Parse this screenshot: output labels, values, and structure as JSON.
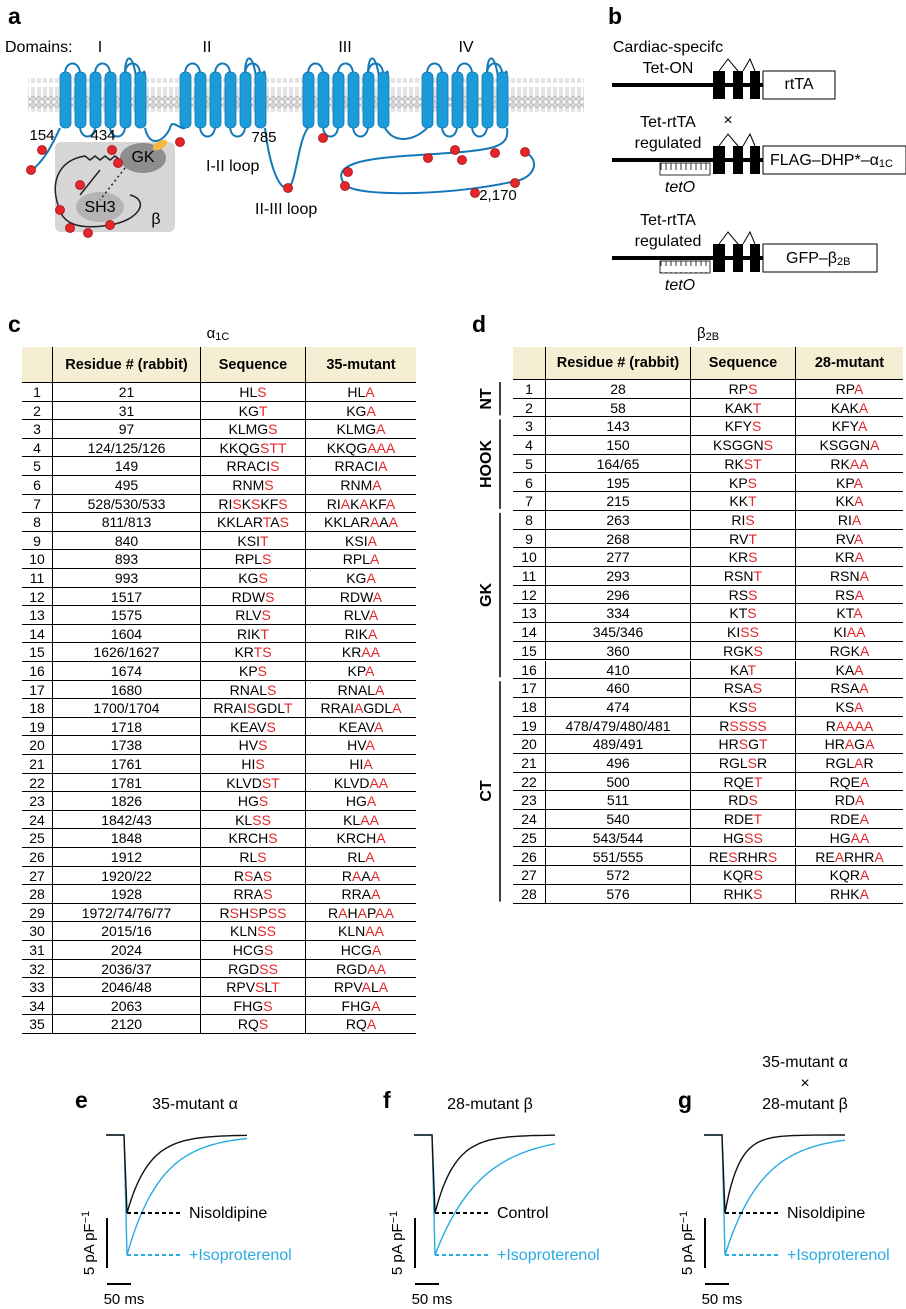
{
  "panel_a": {
    "letter": "a",
    "domains_label": "Domains:",
    "domains": [
      "I",
      "II",
      "III",
      "IV"
    ],
    "residue_labels": [
      "154",
      "434",
      "785",
      "2,170"
    ],
    "gk": "GK",
    "sh3": "SH3",
    "beta": "β",
    "loop_1_2": "I-II loop",
    "loop_2_3": "II-III loop"
  },
  "panel_b": {
    "letter": "b",
    "construct_1": {
      "line1": "Cardiac-specifc",
      "line2": "Tet-ON",
      "box": "rtTA"
    },
    "mark": "×",
    "construct_2": {
      "line1": "Tet-rtTA",
      "line2": "regulated",
      "box_base": "FLAG–DHP*–α",
      "box_sub": "1C",
      "operator": "tetO"
    },
    "construct_3": {
      "line1": "Tet-rtTA",
      "line2": "regulated",
      "box_base": "GFP–β",
      "box_sub": "2B",
      "operator": "tetO"
    }
  },
  "panel_c": {
    "letter": "c",
    "title_base": "α",
    "title_sub": "1C",
    "headers": [
      "Residue # (rabbit)",
      "Sequence",
      "35-mutant"
    ],
    "rows": [
      [
        1,
        "21",
        "HLS",
        "HLA"
      ],
      [
        2,
        "31",
        "KGT",
        "KGA"
      ],
      [
        3,
        "97",
        "KLMGS",
        "KLMGA"
      ],
      [
        4,
        "124/125/126",
        "KKQGSTT",
        "KKQGAAA"
      ],
      [
        5,
        "149",
        "RRACIS",
        "RRACIA"
      ],
      [
        6,
        "495",
        "RNMS",
        "RNMA"
      ],
      [
        7,
        "528/530/533",
        "RISKSKFS",
        "RIAKAKFA"
      ],
      [
        8,
        "811/813",
        "KKLARTAS",
        "KKLARAAA"
      ],
      [
        9,
        "840",
        "KSIT",
        "KSIA"
      ],
      [
        10,
        "893",
        "RPLS",
        "RPLA"
      ],
      [
        11,
        "993",
        "KGS",
        "KGA"
      ],
      [
        12,
        "1517",
        "RDWS",
        "RDWA"
      ],
      [
        13,
        "1575",
        "RLVS",
        "RLVA"
      ],
      [
        14,
        "1604",
        "RIKT",
        "RIKA"
      ],
      [
        15,
        "1626/1627",
        "KRTS",
        "KRAA"
      ],
      [
        16,
        "1674",
        "KPS",
        "KPA"
      ],
      [
        17,
        "1680",
        "RNALS",
        "RNALA"
      ],
      [
        18,
        "1700/1704",
        "RRAISGDLT",
        "RRAIAGDLA"
      ],
      [
        19,
        "1718",
        "KEAVS",
        "KEAVA"
      ],
      [
        20,
        "1738",
        "HVS",
        "HVA"
      ],
      [
        21,
        "1761",
        "HIS",
        "HIA"
      ],
      [
        22,
        "1781",
        "KLVDST",
        "KLVDAA"
      ],
      [
        23,
        "1826",
        "HGS",
        "HGA"
      ],
      [
        24,
        "1842/43",
        "KLSS",
        "KLAA"
      ],
      [
        25,
        "1848",
        "KRCHS",
        "KRCHA"
      ],
      [
        26,
        "1912",
        "RLS",
        "RLA"
      ],
      [
        27,
        "1920/22",
        "RSAS",
        "RAAA"
      ],
      [
        28,
        "1928",
        "RRAS",
        "RRAA"
      ],
      [
        29,
        "1972/74/76/77",
        "RSHSPSS",
        "RAHAPAA"
      ],
      [
        30,
        "2015/16",
        "KLNSS",
        "KLNAA"
      ],
      [
        31,
        "2024",
        "HCGS",
        "HCGA"
      ],
      [
        32,
        "2036/37",
        "RGDSS",
        "RGDAA"
      ],
      [
        33,
        "2046/48",
        "RPVSLT",
        "RPVALA"
      ],
      [
        34,
        "2063",
        "FHGS",
        "FHGA"
      ],
      [
        35,
        "2120",
        "RQS",
        "RQA"
      ]
    ]
  },
  "panel_d": {
    "letter": "d",
    "title_base": "β",
    "title_sub": "2B",
    "headers": [
      "Residue # (rabbit)",
      "Sequence",
      "28-mutant"
    ],
    "groups": [
      {
        "label": "NT",
        "rows": [
          [
            1,
            "28",
            "RPS",
            "RPA"
          ],
          [
            2,
            "58",
            "KAKT",
            "KAKA"
          ]
        ]
      },
      {
        "label": "HOOK",
        "rows": [
          [
            3,
            "143",
            "KFYS",
            "KFYA"
          ],
          [
            4,
            "150",
            "KSGGNS",
            "KSGGNA"
          ],
          [
            5,
            "164/65",
            "RKST",
            "RKAA"
          ],
          [
            6,
            "195",
            "KPS",
            "KPA"
          ],
          [
            7,
            "215",
            "KKT",
            "KKA"
          ]
        ]
      },
      {
        "label": "GK",
        "rows": [
          [
            8,
            "263",
            "RIS",
            "RIA"
          ],
          [
            9,
            "268",
            "RVT",
            "RVA"
          ],
          [
            10,
            "277",
            "KRS",
            "KRA"
          ],
          [
            11,
            "293",
            "RSNT",
            "RSNA"
          ],
          [
            12,
            "296",
            "RSS",
            "RSA"
          ],
          [
            13,
            "334",
            "KTS",
            "KTA"
          ],
          [
            14,
            "345/346",
            "KISS",
            "KIAA"
          ],
          [
            15,
            "360",
            "RGKS",
            "RGKA"
          ],
          [
            16,
            "410",
            "KAT",
            "KAA"
          ]
        ]
      },
      {
        "label": "CT",
        "rows": [
          [
            17,
            "460",
            "RSAS",
            "RSAA"
          ],
          [
            18,
            "474",
            "KSS",
            "KSA"
          ],
          [
            19,
            "478/479/480/481",
            "RSSSS",
            "RAAAA"
          ],
          [
            20,
            "489/491",
            "HRSGT",
            "HRAGA"
          ],
          [
            21,
            "496",
            "RGLSR",
            "RGLAR"
          ],
          [
            22,
            "500",
            "RQET",
            "RQEA"
          ],
          [
            23,
            "511",
            "RDS",
            "RDA"
          ],
          [
            24,
            "540",
            "RDET",
            "RDEA"
          ],
          [
            25,
            "543/544",
            "HGSS",
            "HGAA"
          ],
          [
            26,
            "551/555",
            "RESRHRS",
            "REARHRA"
          ],
          [
            27,
            "572",
            "KQRS",
            "KQRA"
          ],
          [
            28,
            "576",
            "RHKS",
            "RHKA"
          ]
        ]
      }
    ]
  },
  "panel_e": {
    "letter": "e",
    "title_lines": [
      "35-mutant α"
    ],
    "upper_label": "Nisoldipine",
    "lower_label": "+Isoproterenol",
    "scale_y": "5 pA pF",
    "scale_y_sup": "−1",
    "scale_x": "50 ms"
  },
  "panel_f": {
    "letter": "f",
    "title_lines": [
      "28-mutant β"
    ],
    "upper_label": "Control",
    "lower_label": "+Isoproterenol",
    "scale_y": "5 pA pF",
    "scale_y_sup": "−1",
    "scale_x": "50 ms"
  },
  "panel_g": {
    "letter": "g",
    "title_lines": [
      "35-mutant α",
      "×",
      "28-mutant β"
    ],
    "upper_label": "Nisoldipine",
    "lower_label": "+Isoproterenol",
    "scale_y": "5 pA pF",
    "scale_y_sup": "−1",
    "scale_x": "50 ms"
  }
}
